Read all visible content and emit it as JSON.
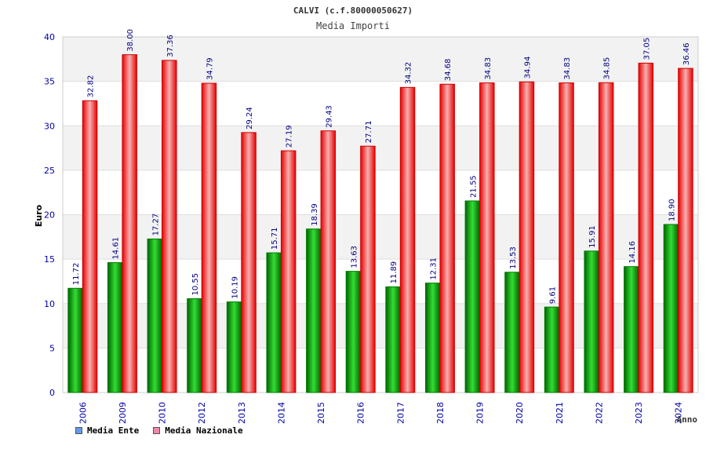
{
  "header": {
    "title": "CALVI (c.f.80000050627)",
    "subtitle": "Media Importi"
  },
  "chart_data": {
    "type": "bar",
    "title": "CALVI (c.f.80000050627)",
    "subtitle": "Media Importi",
    "xlabel": "Anno",
    "ylabel": "Euro",
    "ylim": [
      0,
      40
    ],
    "yticks": [
      "0",
      "5",
      "10",
      "15",
      "20",
      "25",
      "30",
      "35",
      "40"
    ],
    "categories": [
      "2006",
      "2009",
      "2010",
      "2012",
      "2013",
      "2014",
      "2015",
      "2016",
      "2017",
      "2018",
      "2019",
      "2020",
      "2021",
      "2022",
      "2023",
      "2024"
    ],
    "series": [
      {
        "name": "Media Ente",
        "values": [
          11.72,
          14.61,
          17.27,
          10.55,
          10.19,
          15.71,
          18.39,
          13.63,
          11.89,
          12.31,
          21.55,
          13.53,
          9.61,
          15.91,
          14.16,
          18.9
        ],
        "labels": [
          "11.72",
          "14.61",
          "17.27",
          "10.55",
          "10.19",
          "15.71",
          "18.39",
          "13.63",
          "11.89",
          "12.31",
          "21.55",
          "13.53",
          "9.61",
          "15.91",
          "14.16",
          "18.90"
        ]
      },
      {
        "name": "Media Nazionale",
        "values": [
          32.82,
          38.0,
          37.36,
          34.79,
          29.24,
          27.19,
          29.43,
          27.71,
          34.32,
          34.68,
          34.83,
          34.94,
          34.83,
          34.85,
          37.05,
          36.46
        ],
        "labels": [
          "32.82",
          "38.00",
          "37.36",
          "34.79",
          "29.24",
          "27.19",
          "29.43",
          "27.71",
          "34.32",
          "34.68",
          "34.83",
          "34.94",
          "34.83",
          "34.85",
          "37.05",
          "36.46"
        ]
      }
    ],
    "grid": true,
    "legend_position": "bottom-left"
  },
  "legend": {
    "items": [
      {
        "label": "Media Ente",
        "color": "#6699ee"
      },
      {
        "label": "Media Nazionale",
        "color": "#ee88aa"
      }
    ]
  },
  "colors": {
    "ente_bar": "#00b400",
    "nazionale_bar": "#ff2020",
    "value_label": "#000080",
    "tick_label": "#0000aa"
  }
}
